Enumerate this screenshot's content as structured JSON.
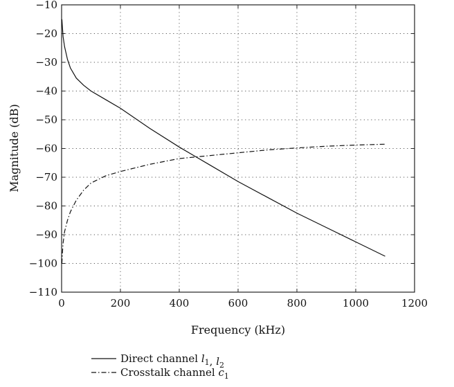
{
  "chart_data": {
    "type": "line",
    "xlabel": "Frequency (kHz)",
    "ylabel": "Magnitude (dB)",
    "xlim": [
      0,
      1200
    ],
    "ylim": [
      -110,
      -10
    ],
    "xticks": [
      0,
      200,
      400,
      600,
      800,
      1000,
      1200
    ],
    "yticks": [
      -10,
      -20,
      -30,
      -40,
      -50,
      -60,
      -70,
      -80,
      -90,
      -100,
      -110
    ],
    "grid": true,
    "legend_position": "bottom-left, below plot",
    "series": [
      {
        "name": "Direct channel l1, l2",
        "legend_main": "Direct channel ",
        "legend_subs": [
          [
            "l",
            "1"
          ],
          [
            "l",
            "2"
          ]
        ],
        "style": "solid",
        "x": [
          1,
          5,
          10,
          20,
          30,
          50,
          75,
          100,
          150,
          200,
          300,
          400,
          450,
          500,
          600,
          700,
          800,
          900,
          1000,
          1100
        ],
        "y": [
          -15,
          -21,
          -24.5,
          -29,
          -32,
          -35.5,
          -38,
          -40,
          -43,
          -46,
          -53,
          -59.5,
          -62.5,
          -65.5,
          -71.5,
          -77,
          -82.5,
          -87.5,
          -92.5,
          -97.5
        ]
      },
      {
        "name": "Crosstalk channel c1",
        "legend_main": "Crosstalk channel ",
        "legend_subs": [
          [
            "c",
            "1"
          ]
        ],
        "style": "dashdot",
        "x": [
          1,
          3,
          5,
          10,
          20,
          30,
          50,
          75,
          100,
          150,
          200,
          300,
          400,
          500,
          600,
          700,
          800,
          900,
          1000,
          1100
        ],
        "y": [
          -100,
          -96,
          -93,
          -89,
          -85,
          -82,
          -78,
          -74.5,
          -72,
          -69.5,
          -68,
          -65.5,
          -63.5,
          -62.5,
          -61.5,
          -60.5,
          -59.8,
          -59.2,
          -58.8,
          -58.5
        ]
      }
    ]
  }
}
